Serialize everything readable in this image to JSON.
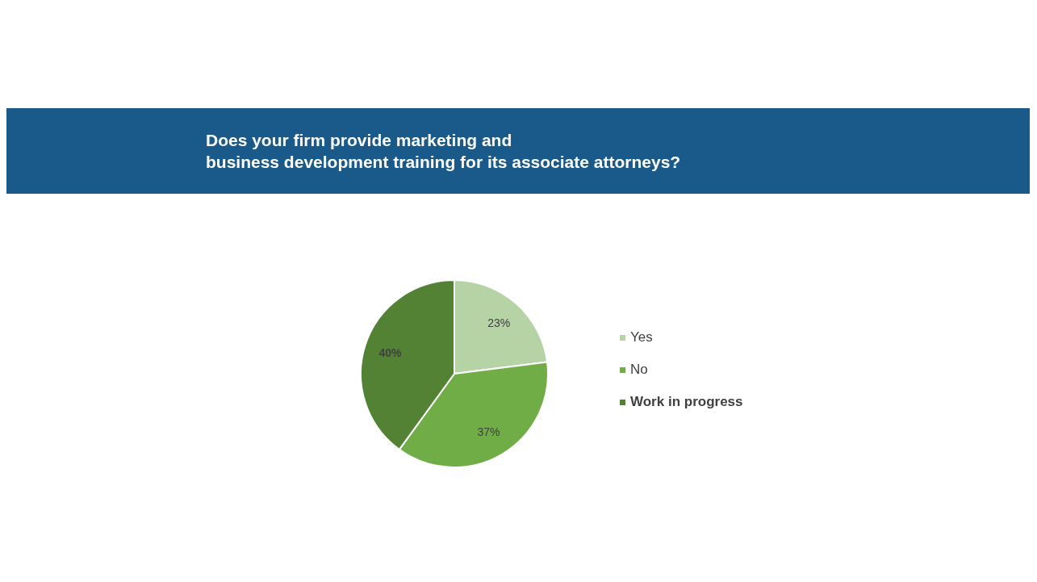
{
  "chart_data": {
    "type": "pie",
    "title": "Does your firm provide marketing and\nbusiness development training for its associate attorneys?",
    "categories": [
      "Yes",
      "No",
      "Work in progress"
    ],
    "values": [
      23,
      37,
      40
    ],
    "colors": [
      "#b5d3a5",
      "#70ad47",
      "#548235"
    ],
    "value_labels": [
      "23%",
      "37%",
      "40%"
    ],
    "legend": "right"
  }
}
